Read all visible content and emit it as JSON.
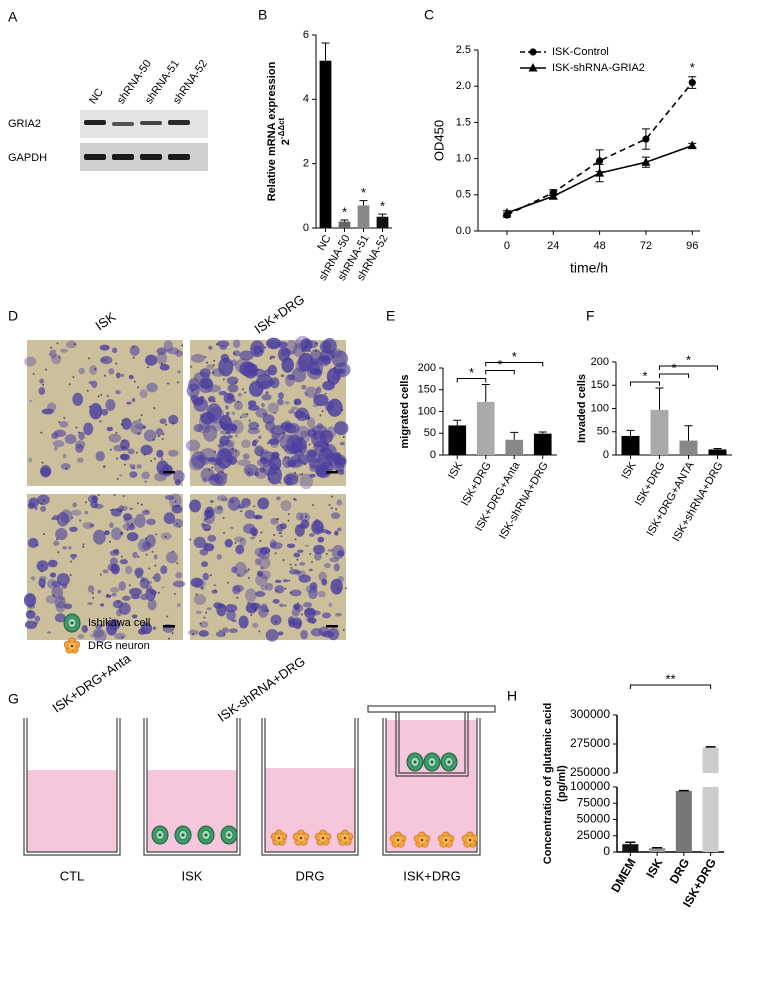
{
  "figure": {
    "panels": [
      "A",
      "B",
      "C",
      "D",
      "E",
      "F",
      "G",
      "H"
    ]
  },
  "blot": {
    "lanes": [
      "NC",
      "shRNA-50",
      "shRNA-51",
      "shRNA-52"
    ],
    "rows": [
      "GRIA2",
      "GAPDH"
    ]
  },
  "micrographs": {
    "labels": [
      "ISK",
      "ISK+DRG",
      "ISK+DRG+Anta",
      "ISK-shRNA+DRG"
    ]
  },
  "schematic": {
    "legend": [
      "Ishikawa cell",
      "DRG neuron"
    ],
    "wells": [
      "CTL",
      "ISK",
      "DRG",
      "ISK+DRG"
    ]
  },
  "chart_data": [
    {
      "type": "bar",
      "ylabel": "Relative mRNA expression",
      "ylabel_unit": {
        "base": "2",
        "exponent": "-ΔΔct"
      },
      "categories": [
        "NC",
        "shRNA-50",
        "shRNA-51",
        "shRNA-52"
      ],
      "values": [
        5.2,
        0.2,
        0.7,
        0.35
      ],
      "errors": [
        0.55,
        0.05,
        0.15,
        0.08
      ],
      "colors": [
        "#000000",
        "#666666",
        "#888888",
        "#111111"
      ],
      "significance": [
        null,
        "*",
        "*",
        "*"
      ],
      "ylim": [
        0,
        6
      ],
      "yticks": [
        0,
        2,
        4,
        6
      ]
    },
    {
      "type": "line",
      "xlabel": "time/h",
      "ylabel": "OD450",
      "x": [
        0,
        24,
        48,
        72,
        96
      ],
      "series": [
        {
          "name": "ISK-Control",
          "color": "#000000",
          "marker": "circle",
          "dash": true,
          "values": [
            0.22,
            0.53,
            0.97,
            1.27,
            2.05
          ],
          "errors": [
            0.03,
            0.04,
            0.15,
            0.14,
            0.08
          ]
        },
        {
          "name": "ISK-shRNA-GRIA2",
          "color": "#000000",
          "marker": "triangle",
          "dash": false,
          "values": [
            0.25,
            0.48,
            0.8,
            0.95,
            1.18
          ],
          "errors": [
            0.03,
            0.03,
            0.12,
            0.07,
            0.03
          ]
        }
      ],
      "significance": [
        null,
        null,
        null,
        null,
        "*"
      ],
      "xlim": [
        -15,
        100
      ],
      "xticks": [
        0,
        24,
        48,
        72,
        96
      ],
      "ylim": [
        0,
        2.5
      ],
      "yticks": [
        {
          "value": 0,
          "label": "0.0"
        },
        0.5,
        {
          "value": 1,
          "label": "1.0"
        },
        1.5,
        {
          "value": 2,
          "label": "2.0"
        },
        2.5
      ],
      "legend": "upper left"
    },
    {
      "type": "bar",
      "ylabel": "migrated cells",
      "categories": [
        "ISK",
        "ISK+DRG",
        "ISK+DRG+Anta",
        "ISK-shRNA+DRG"
      ],
      "values": [
        68,
        122,
        35,
        49
      ],
      "errors": [
        12,
        40,
        17,
        4
      ],
      "colors": [
        "#000000",
        "#aaaaaa",
        "#888888",
        "#000000"
      ],
      "brackets": [
        {
          "from": 0,
          "to": 1,
          "text": "*"
        },
        {
          "from": 1,
          "to": 2,
          "text": "*"
        },
        {
          "from": 1,
          "to": 3,
          "text": "*"
        }
      ],
      "ylim": [
        0,
        200
      ],
      "yticks": [
        0,
        50,
        100,
        150,
        200
      ]
    },
    {
      "type": "bar",
      "ylabel": "Invaded cells",
      "categories": [
        "ISK",
        "ISK+DRG",
        "ISK+DRG+ANTA",
        "ISK+shRNA+DRG"
      ],
      "values": [
        41,
        97,
        31,
        12
      ],
      "errors": [
        12,
        47,
        32,
        2
      ],
      "colors": [
        "#000000",
        "#aaaaaa",
        "#888888",
        "#000000"
      ],
      "brackets": [
        {
          "from": 0,
          "to": 1,
          "text": "*"
        },
        {
          "from": 1,
          "to": 2,
          "text": "*"
        },
        {
          "from": 1,
          "to": 3,
          "text": "*"
        }
      ],
      "ylim": [
        0,
        200
      ],
      "yticks": [
        0,
        50,
        100,
        150,
        200
      ]
    },
    {
      "type": "broken_bar",
      "ylabel": "Concentration of glutamic acid",
      "ylabel_unit": "(pg/ml)",
      "categories": [
        "DMEM",
        "ISK",
        "DRG",
        "ISK+DRG"
      ],
      "values": [
        12000,
        6000,
        94000,
        272000
      ],
      "errors": [
        3000,
        500,
        500,
        500
      ],
      "colors": [
        "#111111",
        "#999999",
        "#777777",
        "#cccccc"
      ],
      "brackets": [
        {
          "from": 0,
          "to": 3,
          "text": "**"
        }
      ],
      "segments": [
        {
          "ylim": [
            0,
            100000
          ],
          "yticks": [
            0,
            25000,
            50000,
            75000,
            100000
          ]
        },
        {
          "ylim": [
            250000,
            300000
          ],
          "yticks": [
            250000,
            275000,
            300000
          ]
        }
      ]
    }
  ]
}
